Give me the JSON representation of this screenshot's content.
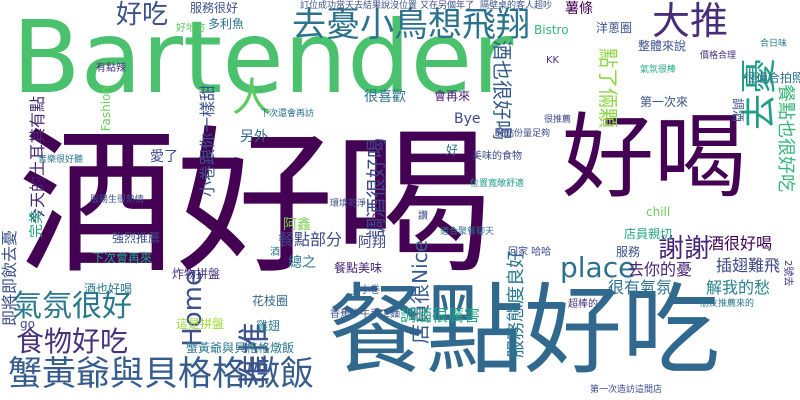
{
  "palette": {
    "dark_purple": "#440154",
    "indigo": "#46337e",
    "blue": "#365c8d",
    "teal": "#277f8e",
    "green_teal": "#1fa187",
    "green": "#4ac16d",
    "lime": "#a0da39",
    "yellow": "#c8d92a"
  },
  "words": [
    {
      "text": "Bartender",
      "color": "#4ac16d"
    },
    {
      "text": "酒好喝",
      "color": "#440154"
    },
    {
      "text": "餐點好吃",
      "color": "#31688e"
    },
    {
      "text": "好喝",
      "color": "#440154"
    },
    {
      "text": "去憂小鳥想飛翔",
      "color": "#2c728e"
    },
    {
      "text": "大推",
      "color": "#472d7b"
    },
    {
      "text": "去憂",
      "color": "#1f9e89"
    },
    {
      "text": "蟹黃爺與貝格格燉飯",
      "color": "#365c8d"
    },
    {
      "text": "食物好吃",
      "color": "#46337e"
    },
    {
      "text": "氣氛很好",
      "color": "#2a788e"
    },
    {
      "text": "好吃",
      "color": "#3b528b"
    },
    {
      "text": "推推",
      "color": "#3b528b"
    },
    {
      "text": "place",
      "color": "#2c728e"
    },
    {
      "text": "謝謝",
      "color": "#482475"
    },
    {
      "text": "Home",
      "color": "#3b528b"
    },
    {
      "text": "人",
      "color": "#5ec962"
    },
    {
      "text": "點了倆顆",
      "color": "#8fd744"
    },
    {
      "text": "調酒很好喝",
      "color": "#3e4989"
    },
    {
      "text": "酒也很好喝",
      "color": "#365c8d"
    },
    {
      "text": "店員很Nice",
      "color": "#365c8d"
    },
    {
      "text": "服務態度良好",
      "color": "#2a788e"
    },
    {
      "text": "餐點也很好吃",
      "color": "#35b779"
    },
    {
      "text": "酒很好喝",
      "color": "#440154"
    },
    {
      "text": "插翅難飛",
      "color": "#3e4989"
    },
    {
      "text": "很有氣氛",
      "color": "#2c728e"
    },
    {
      "text": "去你的憂",
      "color": "#482475"
    },
    {
      "text": "解我的愁",
      "color": "#26828e"
    },
    {
      "text": "小卷跟你一樣甜",
      "color": "#3b528b"
    },
    {
      "text": "調酒很厲害",
      "color": "#22a884"
    },
    {
      "text": "餐點部分",
      "color": "#3e4989"
    },
    {
      "text": "總之",
      "color": "#2a788e"
    },
    {
      "text": "阿翔",
      "color": "#3e4989"
    },
    {
      "text": "阿鑫",
      "color": "#7ad151"
    },
    {
      "text": "愛了",
      "color": "#3e4989"
    },
    {
      "text": "另外",
      "color": "#31688e"
    },
    {
      "text": "強烈推薦",
      "color": "#3e4989"
    },
    {
      "text": "下次會再來",
      "color": "#22a884"
    },
    {
      "text": "炸物拼盤",
      "color": "#46337e"
    },
    {
      "text": "花枝圈",
      "color": "#31688e"
    },
    {
      "text": "雞翅",
      "color": "#2a788e"
    },
    {
      "text": "蟹黃爺與貝格格燉飯",
      "color": "#2a788e"
    },
    {
      "text": "這是拼盤",
      "color": "#a0da39"
    },
    {
      "text": "今天的土耳其有點",
      "color": "#482475"
    },
    {
      "text": "即將即飲去憂",
      "color": "#3b528b"
    },
    {
      "text": "完美",
      "color": "#20a386"
    },
    {
      "text": "go",
      "color": "#3e4989"
    },
    {
      "text": "酒也好喝",
      "color": "#2a788e"
    },
    {
      "text": "Fashion",
      "color": "#6ece58"
    },
    {
      "text": "有點辣",
      "color": "#46337e"
    },
    {
      "text": "好地方",
      "color": "#5ec962"
    },
    {
      "text": "多利魚",
      "color": "#2c728e"
    },
    {
      "text": "服務很好",
      "color": "#3b528b"
    },
    {
      "text": "很喜歡",
      "color": "#2c728e"
    },
    {
      "text": "會再來",
      "color": "#481f70"
    },
    {
      "text": "Bye",
      "color": "#3e4989"
    },
    {
      "text": "Bistro",
      "color": "#35b779"
    },
    {
      "text": "KK",
      "color": "#46337e"
    },
    {
      "text": "薯條",
      "color": "#440154"
    },
    {
      "text": "洋蔥圈",
      "color": "#3b528b"
    },
    {
      "text": "整體來說",
      "color": "#3b528b"
    },
    {
      "text": "第一次來",
      "color": "#3b528b"
    },
    {
      "text": "調酒",
      "color": "#3b528b"
    },
    {
      "text": "很適合拍照",
      "color": "#2c728e"
    },
    {
      "text": "美味的食物",
      "color": "#3e4989"
    },
    {
      "text": "回家 哈哈",
      "color": "#3e4989"
    },
    {
      "text": "chill",
      "color": "#6ece58"
    },
    {
      "text": "服務",
      "color": "#3b528b"
    },
    {
      "text": "店員親切",
      "color": "#22a884"
    },
    {
      "text": "小卷",
      "color": "#3b528b"
    },
    {
      "text": "餐點美味",
      "color": "#482475"
    },
    {
      "text": "酒",
      "color": "#2c728e"
    },
    {
      "text": "香蕉牛牛手工麵",
      "color": "#3b528b"
    },
    {
      "text": "超棒的",
      "color": "#46337e"
    },
    {
      "text": "第一次造訪這間店",
      "color": "#3e4989"
    },
    {
      "text": "訂位成功當天去結果說沒位置",
      "color": "#3b528b"
    },
    {
      "text": "又在另個年了",
      "color": "#3e4989"
    },
    {
      "text": "隔壁桌的客人超吵",
      "color": "#3b528b"
    },
    {
      "text": "合日味",
      "color": "#2a788e"
    },
    {
      "text": "2號去",
      "color": "#46337e"
    },
    {
      "text": "適合聚餐聊天",
      "color": "#2c728e"
    },
    {
      "text": "位置寬敞舒適",
      "color": "#1f9e89"
    },
    {
      "text": "餐點份量足夠",
      "color": "#3e4989"
    },
    {
      "text": "環境乾淨",
      "color": "#3e4989"
    },
    {
      "text": "下次還會再訪",
      "color": "#2c728e"
    },
    {
      "text": "服務生很熱情",
      "color": "#3b528b"
    },
    {
      "text": "價格合理",
      "color": "#46337e"
    },
    {
      "text": "朋友推薦來的",
      "color": "#2a788e"
    },
    {
      "text": "氣氛很棒",
      "color": "#22a884"
    },
    {
      "text": "很推薦",
      "color": "#3e4989"
    },
    {
      "text": "好",
      "color": "#2c728e"
    },
    {
      "text": "讚",
      "color": "#3e4989"
    },
    {
      "text": "音樂很好聽",
      "color": "#2a788e"
    }
  ]
}
